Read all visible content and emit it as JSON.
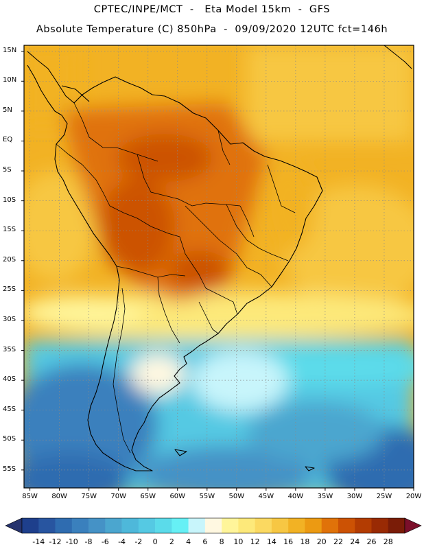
{
  "title": {
    "line1": "CPTEC/INPE/MCT  -   Eta Model 15km  -  GFS",
    "line2": "Absolute Temperature (C) 850hPa  -  09/09/2020 12UTC fct=146h"
  },
  "map": {
    "lat_labels": [
      "15N",
      "10N",
      "5N",
      "EQ",
      "5S",
      "10S",
      "15S",
      "20S",
      "25S",
      "30S",
      "35S",
      "40S",
      "45S",
      "50S",
      "55S"
    ],
    "lon_labels": [
      "85W",
      "80W",
      "75W",
      "70W",
      "65W",
      "60W",
      "55W",
      "50W",
      "45W",
      "40W",
      "35W",
      "30W",
      "25W",
      "20W"
    ],
    "variable": "Temperature at 850hPa (C)",
    "lat_range": [
      16,
      -58
    ],
    "lon_range": [
      -86,
      -20
    ]
  },
  "colorbar": {
    "ticks": [
      "-14",
      "-12",
      "-10",
      "-8",
      "-6",
      "-4",
      "-2",
      "0",
      "2",
      "4",
      "6",
      "8",
      "10",
      "12",
      "14",
      "16",
      "18",
      "20",
      "22",
      "24",
      "26",
      "28"
    ],
    "colors": [
      "#1e3f8c",
      "#2855a0",
      "#2f6cb0",
      "#3a80bd",
      "#4592c6",
      "#4ba6cf",
      "#4eb8da",
      "#55c9e3",
      "#5bdbea",
      "#66f0f5",
      "#c8f5fb",
      "#fff8e1",
      "#fff59a",
      "#fde97a",
      "#fbd961",
      "#f7c743",
      "#f2b224",
      "#ec9a12",
      "#e07209",
      "#cc5204",
      "#b33c02",
      "#992a04",
      "#7a1c07"
    ],
    "below_color": "#26336e",
    "above_color": "#7b0f2a"
  }
}
